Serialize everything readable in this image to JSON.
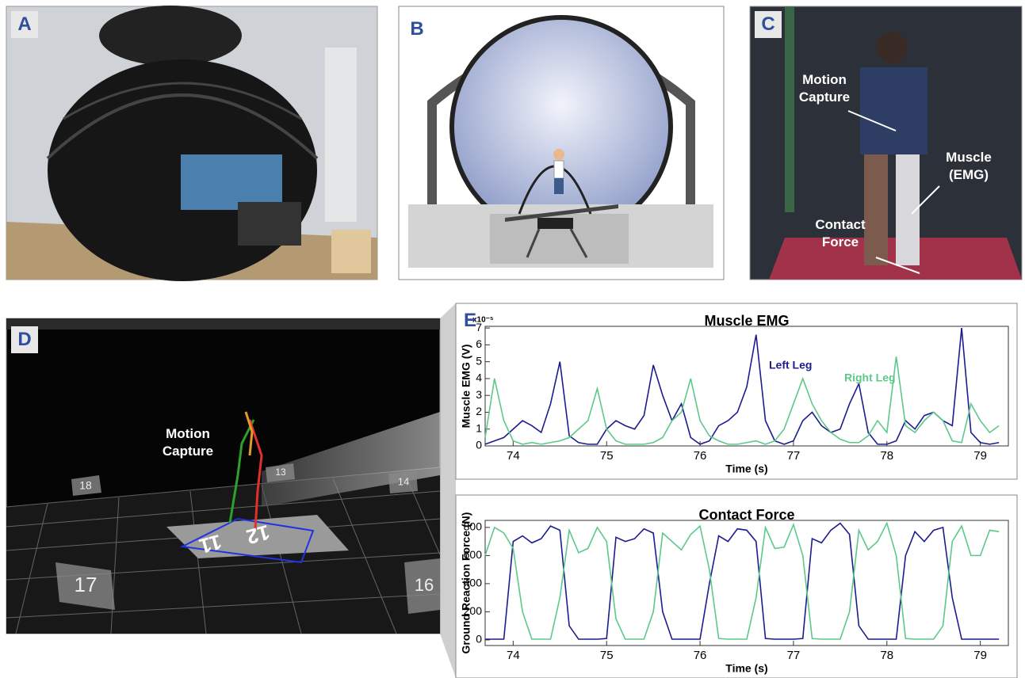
{
  "panel_labels": [
    "A",
    "B",
    "C",
    "D",
    "E"
  ],
  "panel_c": {
    "annotations": [
      "Motion Capture",
      "Muscle (EMG)",
      "Contact Force"
    ]
  },
  "panel_d": {
    "annotation": "Motion Capture",
    "camera_labels": [
      "18",
      "13",
      "14",
      "17",
      "16"
    ],
    "floor_labels": [
      "11",
      "12"
    ]
  },
  "chart_data": [
    {
      "type": "line",
      "title": "Muscle EMG",
      "x_label": "Time (s)",
      "y_label": "Muscle EMG (V)",
      "y_exponent_label": "x10⁻⁵",
      "x": [
        73.7,
        73.8,
        73.9,
        74.0,
        74.1,
        74.2,
        74.3,
        74.4,
        74.5,
        74.6,
        74.7,
        74.8,
        74.9,
        75.0,
        75.1,
        75.2,
        75.3,
        75.4,
        75.5,
        75.6,
        75.7,
        75.8,
        75.9,
        76.0,
        76.1,
        76.2,
        76.3,
        76.4,
        76.5,
        76.6,
        76.7,
        76.8,
        76.9,
        77.0,
        77.1,
        77.2,
        77.3,
        77.4,
        77.5,
        77.6,
        77.7,
        77.8,
        77.9,
        78.0,
        78.1,
        78.2,
        78.3,
        78.4,
        78.5,
        78.6,
        78.7,
        78.8,
        78.9,
        79.0,
        79.1,
        79.2
      ],
      "series": [
        {
          "name": "Left Leg",
          "color": "#1c1c8f",
          "values": [
            0.1,
            0.3,
            0.5,
            1.0,
            1.5,
            1.2,
            0.8,
            2.5,
            5.0,
            0.6,
            0.2,
            0.1,
            0.1,
            1.0,
            1.5,
            1.2,
            1.0,
            1.8,
            4.8,
            3.0,
            1.5,
            2.5,
            0.5,
            0.1,
            0.3,
            1.2,
            1.5,
            2.0,
            3.5,
            6.6,
            1.5,
            0.3,
            0.1,
            0.3,
            1.5,
            2.0,
            1.2,
            0.8,
            1.0,
            2.5,
            3.7,
            0.8,
            0.1,
            0.1,
            0.3,
            1.5,
            1.0,
            1.8,
            2.0,
            1.5,
            1.2,
            7.0,
            0.8,
            0.2,
            0.1,
            0.2
          ]
        },
        {
          "name": "Right Leg",
          "color": "#5cc98a",
          "values": [
            0.5,
            4.0,
            1.5,
            0.3,
            0.1,
            0.2,
            0.1,
            0.2,
            0.3,
            0.5,
            1.0,
            1.5,
            3.4,
            1.0,
            0.3,
            0.1,
            0.1,
            0.1,
            0.2,
            0.5,
            1.5,
            2.0,
            4.0,
            1.5,
            0.6,
            0.3,
            0.1,
            0.1,
            0.2,
            0.3,
            0.1,
            0.3,
            1.0,
            2.5,
            4.0,
            2.5,
            1.5,
            0.8,
            0.4,
            0.2,
            0.2,
            0.6,
            1.5,
            0.8,
            5.3,
            1.2,
            0.8,
            1.5,
            2.0,
            1.5,
            0.3,
            0.2,
            2.5,
            1.5,
            0.8,
            1.2
          ]
        }
      ],
      "xlim": [
        73.7,
        79.3
      ],
      "ylim": [
        0,
        7.1
      ],
      "xticks": [
        74,
        75,
        76,
        77,
        78,
        79
      ],
      "yticks": [
        0,
        1,
        2,
        3,
        4,
        5,
        6,
        7
      ]
    },
    {
      "type": "line",
      "title": "Contact Force",
      "x_label": "Time (s)",
      "y_label": "Ground Reaction Force (N)",
      "x": [
        73.7,
        73.8,
        73.9,
        74.0,
        74.1,
        74.2,
        74.3,
        74.4,
        74.5,
        74.6,
        74.7,
        74.8,
        74.9,
        75.0,
        75.1,
        75.2,
        75.3,
        75.4,
        75.5,
        75.6,
        75.7,
        75.8,
        75.9,
        76.0,
        76.1,
        76.2,
        76.3,
        76.4,
        76.5,
        76.6,
        76.7,
        76.8,
        76.9,
        77.0,
        77.1,
        77.2,
        77.3,
        77.4,
        77.5,
        77.6,
        77.7,
        77.8,
        77.9,
        78.0,
        78.1,
        78.2,
        78.3,
        78.4,
        78.5,
        78.6,
        78.7,
        78.8,
        78.9,
        79.0,
        79.1,
        79.2
      ],
      "series": [
        {
          "color": "#1c1c8f",
          "values": [
            5,
            5,
            5,
            700,
            740,
            690,
            720,
            810,
            780,
            100,
            5,
            5,
            5,
            10,
            730,
            700,
            720,
            790,
            760,
            200,
            5,
            5,
            5,
            5,
            400,
            740,
            700,
            790,
            780,
            700,
            10,
            5,
            5,
            5,
            10,
            720,
            690,
            780,
            830,
            750,
            100,
            5,
            5,
            5,
            5,
            600,
            770,
            700,
            780,
            800,
            300,
            5,
            5,
            5,
            5,
            5
          ]
        },
        {
          "color": "#5cc98a",
          "values": [
            600,
            800,
            760,
            650,
            200,
            5,
            5,
            5,
            300,
            780,
            620,
            650,
            800,
            700,
            150,
            5,
            5,
            5,
            200,
            760,
            700,
            640,
            750,
            810,
            500,
            10,
            5,
            5,
            5,
            300,
            800,
            650,
            660,
            820,
            600,
            10,
            5,
            5,
            5,
            200,
            780,
            640,
            700,
            830,
            600,
            10,
            5,
            5,
            5,
            100,
            700,
            810,
            600,
            600,
            780,
            770
          ]
        }
      ],
      "xlim": [
        73.7,
        79.3
      ],
      "ylim": [
        -40,
        850
      ],
      "xticks": [
        74,
        75,
        76,
        77,
        78,
        79
      ],
      "yticks": [
        0,
        200,
        400,
        600,
        800
      ]
    }
  ]
}
